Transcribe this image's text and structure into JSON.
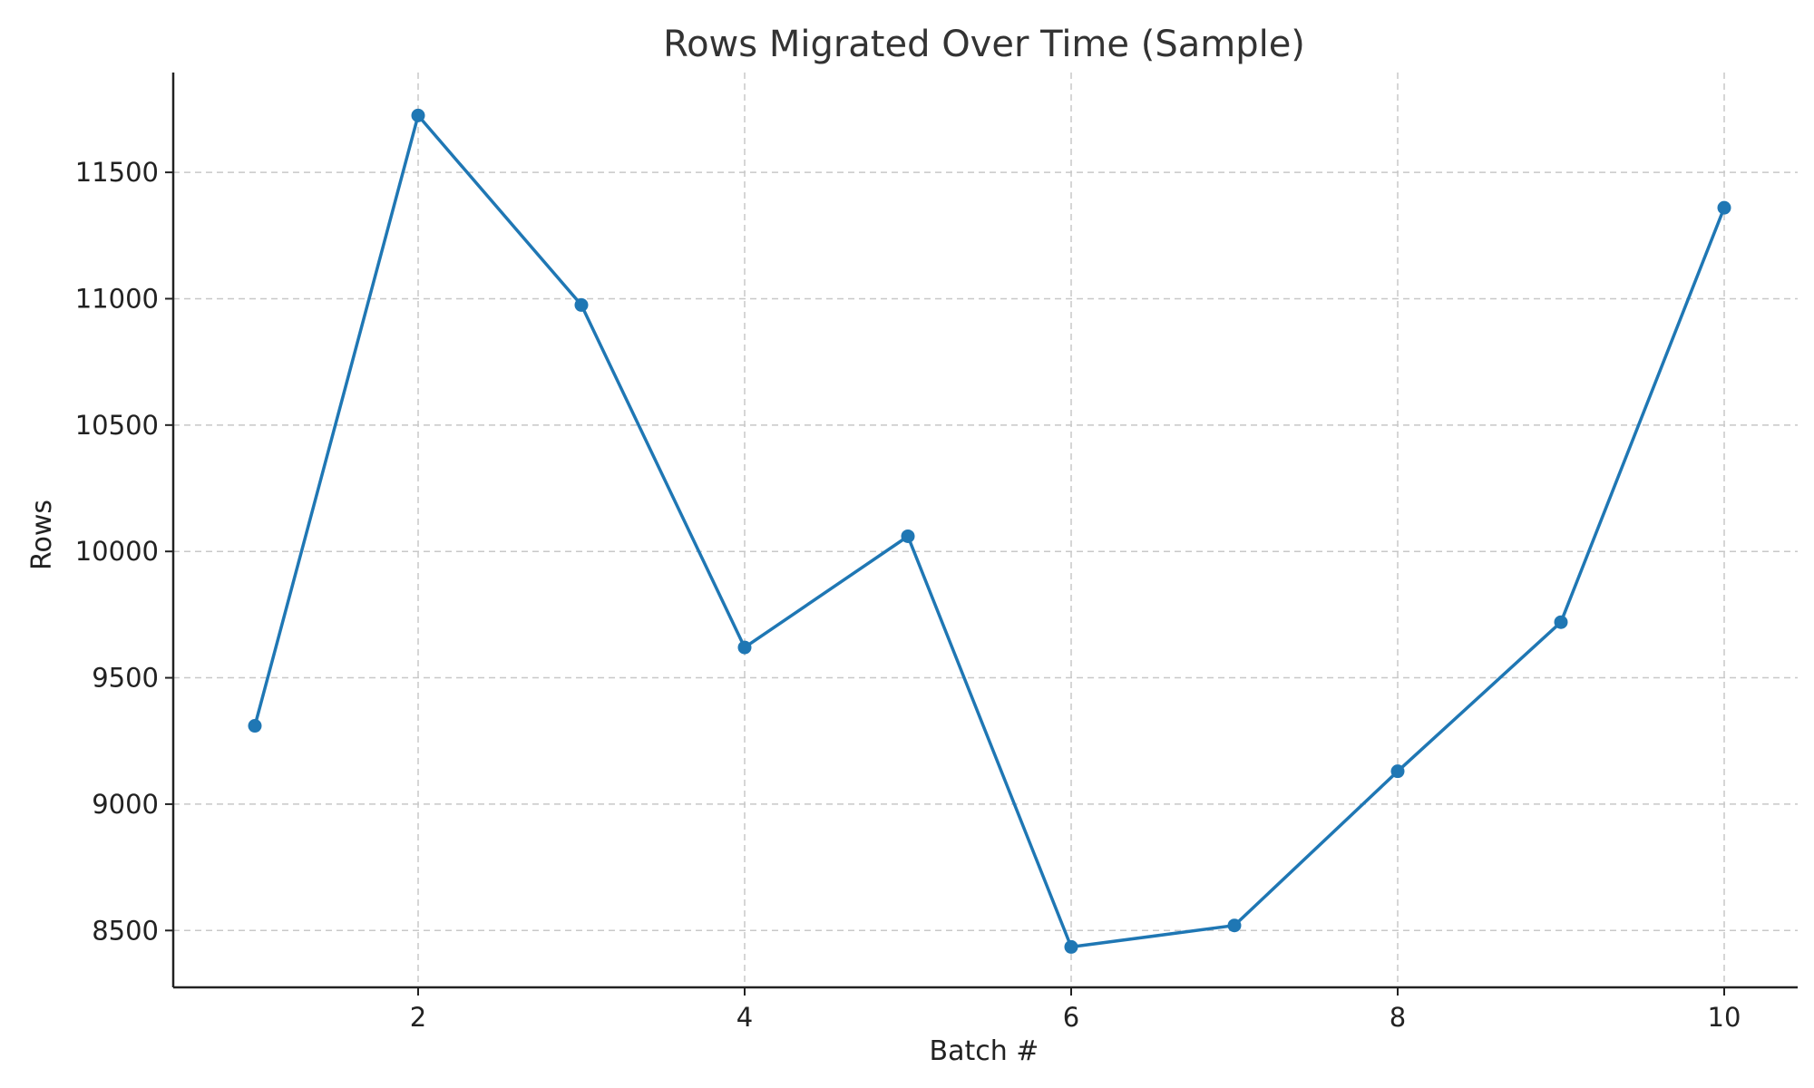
{
  "chart_data": {
    "type": "line",
    "title": "Rows Migrated Over Time (Sample)",
    "xlabel": "Batch #",
    "ylabel": "Rows",
    "x": [
      1,
      2,
      3,
      4,
      5,
      6,
      7,
      8,
      9,
      10
    ],
    "series": [
      {
        "values": [
          9310,
          11725,
          10975,
          9620,
          10060,
          8435,
          8520,
          9130,
          9720,
          11360
        ],
        "color": "#1f77b4"
      }
    ],
    "xlim": [
      0.5,
      10.45
    ],
    "ylim": [
      8275,
      11895
    ],
    "xticks": [
      2,
      4,
      6,
      8,
      10
    ],
    "yticks": [
      8500,
      9000,
      9500,
      10000,
      10500,
      11000,
      11500
    ],
    "grid": true,
    "markers": true,
    "legend": false
  }
}
